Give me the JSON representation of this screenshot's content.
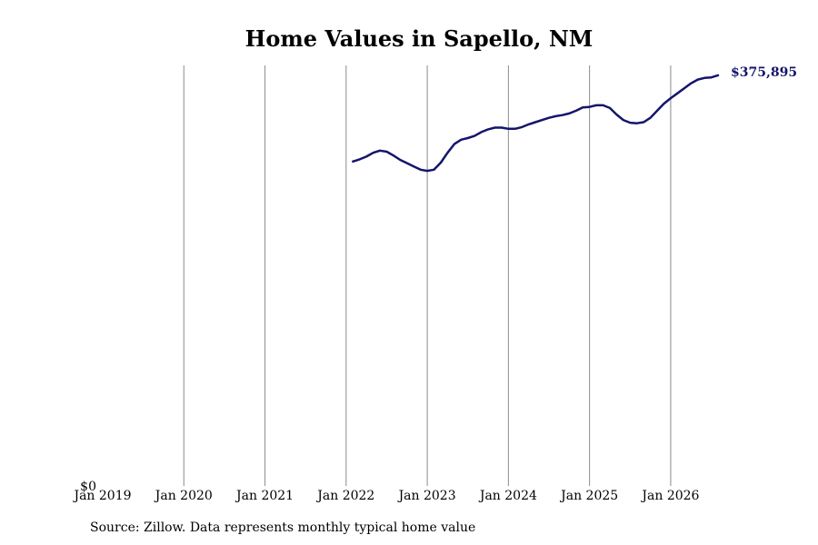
{
  "chart_data": {
    "type": "line",
    "title": "Home Values in Sapello, NM",
    "xlabel": "",
    "ylabel": "",
    "x_ticks": [
      "Jan 2019",
      "Jan 2020",
      "Jan 2021",
      "Jan 2022",
      "Jan 2023",
      "Jan 2024",
      "Jan 2025",
      "Jan 2026"
    ],
    "y_ticks": [
      "$0"
    ],
    "xlim": [
      "2019-01",
      "2026-08"
    ],
    "ylim": [
      0,
      385000
    ],
    "grid": "vertical",
    "line_color": "#14156b",
    "end_label": "$375,895",
    "series": [
      {
        "x": [
          "2022-02",
          "2022-03",
          "2022-04",
          "2022-05",
          "2022-06",
          "2022-07",
          "2022-08",
          "2022-09",
          "2022-10",
          "2022-11",
          "2022-12",
          "2023-01",
          "2023-02",
          "2023-03",
          "2023-04",
          "2023-05",
          "2023-06",
          "2023-07",
          "2023-08",
          "2023-09",
          "2023-10",
          "2023-11",
          "2023-12",
          "2024-01",
          "2024-02",
          "2024-03",
          "2024-04",
          "2024-05",
          "2024-06",
          "2024-07",
          "2024-08",
          "2024-09",
          "2024-10",
          "2024-11",
          "2024-12",
          "2025-01",
          "2025-02",
          "2025-03",
          "2025-04",
          "2025-05",
          "2025-06",
          "2025-07",
          "2025-08",
          "2025-09",
          "2025-10",
          "2025-11",
          "2025-12",
          "2026-01",
          "2026-02",
          "2026-03",
          "2026-04",
          "2026-05",
          "2026-06",
          "2026-07",
          "2026-08"
        ],
        "values": [
          297000,
          299000,
          301500,
          305000,
          307000,
          306000,
          302500,
          298500,
          295500,
          292500,
          289500,
          288500,
          289500,
          296000,
          305000,
          313000,
          317000,
          318500,
          320500,
          324000,
          326500,
          328000,
          328000,
          327000,
          327000,
          328500,
          331000,
          333000,
          335000,
          337000,
          338500,
          339500,
          341000,
          343500,
          346500,
          347000,
          348500,
          348500,
          346000,
          340000,
          335000,
          332500,
          332000,
          333000,
          337000,
          343500,
          350000,
          355000,
          359500,
          364000,
          368500,
          372000,
          373500,
          374000,
          375895
        ]
      }
    ]
  },
  "source_text": "Source: Zillow. Data represents monthly typical home value"
}
